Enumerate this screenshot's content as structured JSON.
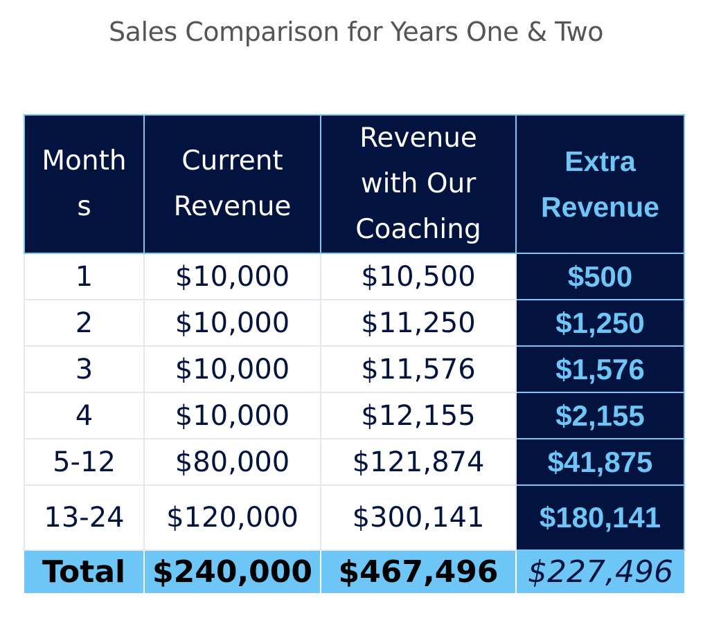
{
  "title": "Sales Comparison for Years One & Two",
  "table": {
    "headers": [
      {
        "line1": "Month",
        "line2": "s",
        "line3": ""
      },
      {
        "line1": "Current",
        "line2": "Revenue",
        "line3": ""
      },
      {
        "line1": "Revenue",
        "line2": "with Our",
        "line3": "Coaching"
      },
      {
        "line1": "Extra",
        "line2": "Revenue",
        "line3": ""
      }
    ],
    "rows": [
      {
        "month": "1",
        "current": "$10,000",
        "coaching": "$10,500",
        "extra": "$500"
      },
      {
        "month": "2",
        "current": "$10,000",
        "coaching": "$11,250",
        "extra": "$1,250"
      },
      {
        "month": "3",
        "current": "$10,000",
        "coaching": "$11,576",
        "extra": "$1,576"
      },
      {
        "month": "4",
        "current": "$10,000",
        "coaching": "$12,155",
        "extra": "$2,155"
      },
      {
        "month": "5-12",
        "current": "$80,000",
        "coaching": "$121,874",
        "extra": "$41,875"
      },
      {
        "month": "13-24",
        "current": "$120,000",
        "coaching": "$300,141",
        "extra": "$180,141"
      }
    ],
    "total": {
      "label": "Total",
      "current": "$240,000",
      "coaching": "$467,496",
      "extra": "$227,496"
    }
  },
  "colors": {
    "navy": "#02133f",
    "light_blue": "#6ec6f6",
    "title_gray": "#555555"
  }
}
